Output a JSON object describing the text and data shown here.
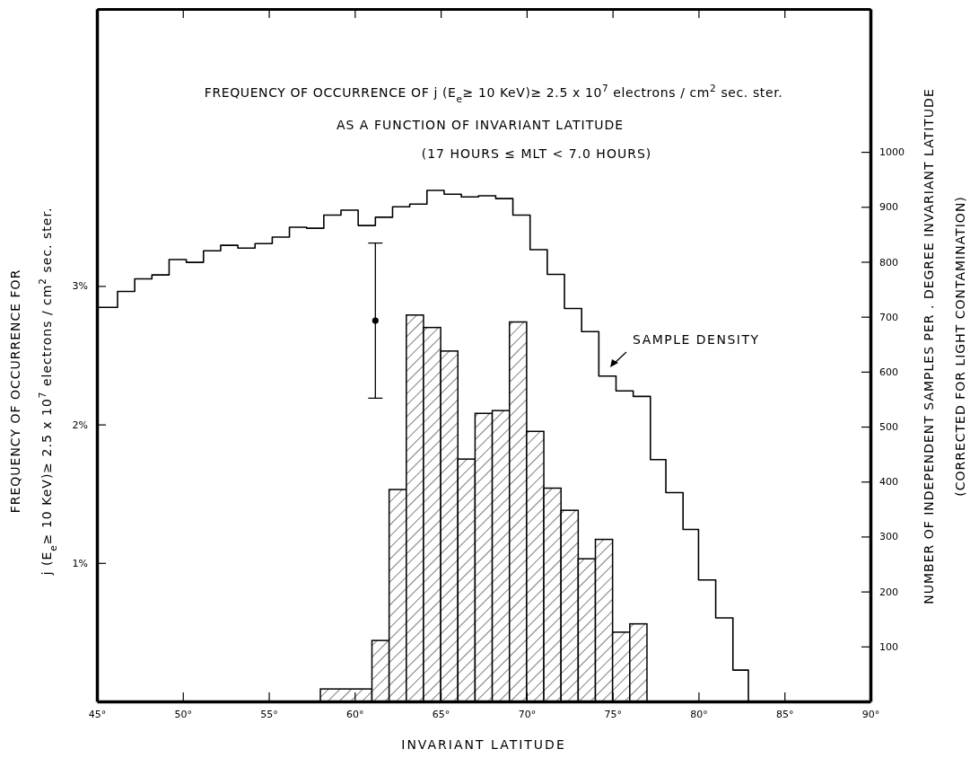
{
  "chart_data": {
    "type": "histogram",
    "title": "FREQUENCY OF OCCURRENCE OF j (E$_{e}$≥ 10 KeV)≥ 2.5 x 10$^{7}$ electrons / cm$^{2}$ sec. ster.",
    "subtitle": "AS A  FUNCTION OF INVARIANT LATITUDE",
    "annotations": [
      "(17 HOURS ≤ MLT < 7.0 HOURS)"
    ],
    "xlabel": "INVARIANT LATITUDE",
    "ylabel": "FREQUENCY OF OCCURRENCE FOR\nj (E$_{e}$≥ 10 KeV)≥ 2.5 x 10$^{7}$ electrons / cm$^{2}$ sec. ster.",
    "y2label": "NUMBER OF INDEPENDENT SAMPLES PER . DEGREE INVARIANT LATITUDE\n(CORRECTED FOR LIGHT CONTAMINATION)",
    "xlim": [
      45,
      90
    ],
    "xticks": [
      {
        "value": 45,
        "label": "45°"
      },
      {
        "value": 50,
        "label": "50°"
      },
      {
        "value": 55,
        "label": "55°"
      },
      {
        "value": 60,
        "label": "60°"
      },
      {
        "value": 65,
        "label": "65°"
      },
      {
        "value": 70,
        "label": "70°"
      },
      {
        "value": 75,
        "label": "75°"
      },
      {
        "value": 80,
        "label": "80°"
      },
      {
        "value": 85,
        "label": "85°"
      },
      {
        "value": 90,
        "label": "90°"
      }
    ],
    "ylim": [
      0,
      5
    ],
    "yticks": [
      {
        "value": 1,
        "label": "1%"
      },
      {
        "value": 2,
        "label": "2%"
      },
      {
        "value": 3,
        "label": "3%"
      }
    ],
    "y2lim": [
      0,
      1260
    ],
    "y2ticks": [
      100,
      200,
      300,
      400,
      500,
      600,
      700,
      800,
      900,
      1000
    ],
    "grid": false,
    "series": [
      {
        "color": "#000000",
        "bins": [
          58,
          61,
          62,
          63,
          64,
          65,
          66,
          67,
          68,
          69,
          70,
          71,
          72,
          73,
          74,
          75,
          76,
          77
        ],
        "values": [
          0.09,
          0.44,
          1.53,
          2.79,
          2.7,
          2.53,
          1.75,
          2.08,
          2.1,
          2.74,
          1.95,
          1.54,
          1.38,
          1.03,
          1.17,
          0.5,
          0.56
        ]
      },
      {
        "type": "step",
        "axis": "y2",
        "name": "SAMPLE DENSITY",
        "color": "#000000",
        "x": [
          45,
          46.2,
          47.2,
          48.2,
          49.2,
          50.2,
          51.2,
          52.2,
          53.2,
          54.2,
          55.2,
          56.2,
          57.2,
          58.2,
          59.2,
          60.2,
          61.2,
          62.2,
          63.2,
          64.2,
          65.2,
          66.2,
          67.2,
          68.2,
          69.2,
          70.2,
          71.2,
          72.2,
          73.2,
          74.2,
          75.2,
          76.2,
          77.2,
          78.1,
          79.1,
          80.0,
          81.0,
          82.0,
          82.9
        ],
        "values": [
          717,
          746,
          769,
          776,
          804,
          799,
          820,
          830,
          825,
          833,
          845,
          863,
          861,
          885,
          894,
          866,
          881,
          900,
          905,
          930,
          923,
          918,
          920,
          915,
          885,
          822,
          777,
          715,
          673,
          592,
          565,
          555,
          440,
          380,
          313,
          221,
          152,
          57,
          0
        ]
      },
      {
        "type": "scatter",
        "color": "#000000",
        "marker": "circle",
        "x": [
          61.2
        ],
        "values": [
          2.75
        ],
        "errors": [
          [
            2.19,
            3.31
          ]
        ]
      }
    ]
  }
}
